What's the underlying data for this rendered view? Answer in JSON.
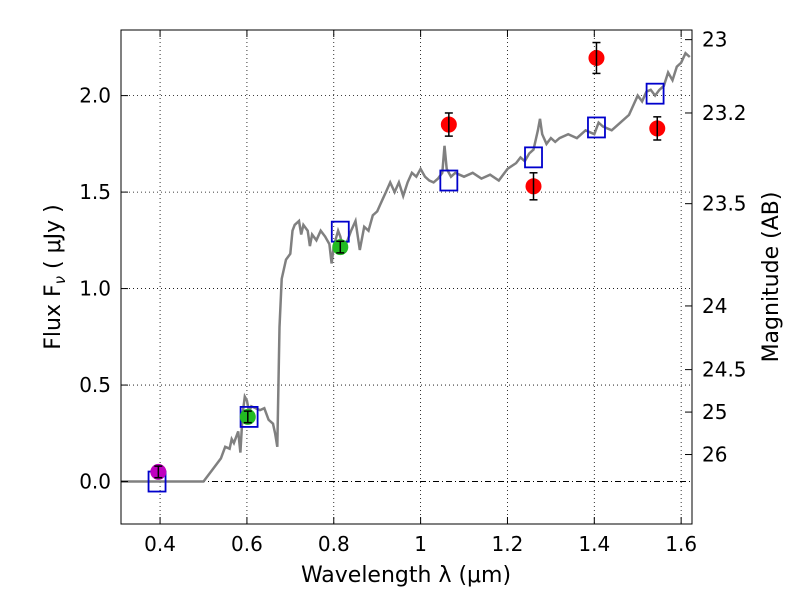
{
  "chart_data": {
    "type": "scatter",
    "xlabel": "Wavelength  λ (μm)",
    "ylabel": "Flux  F",
    "ylabel_sub": "ν",
    "ylabel_unit": "  ( μJy )",
    "ylabel_right": "Magnitude (AB)",
    "xlim": [
      0.31,
      1.625
    ],
    "ylim": [
      -0.22,
      2.34
    ],
    "x_ticks": [
      0.4,
      0.6,
      0.8,
      1.0,
      1.2,
      1.4,
      1.6
    ],
    "x_tick_labels": [
      "0.4",
      "0.6",
      "0.8",
      "1",
      "1.2",
      "1.4",
      "1.6"
    ],
    "y_ticks": [
      0.0,
      0.5,
      1.0,
      1.5,
      2.0
    ],
    "y_tick_labels": [
      "0.0",
      "0.5",
      "1.0",
      "1.5",
      "2.0"
    ],
    "right_ticks": [
      {
        "flux": 2.29,
        "label": "23"
      },
      {
        "flux": 1.91,
        "label": "23.2"
      },
      {
        "flux": 1.44,
        "label": "23.5"
      },
      {
        "flux": 0.91,
        "label": "24"
      },
      {
        "flux": 0.58,
        "label": "24.5"
      },
      {
        "flux": 0.36,
        "label": "25"
      },
      {
        "flux": 0.14,
        "label": "26"
      }
    ],
    "grid": true,
    "series": [
      {
        "name": "observed-purple",
        "color": "#bf00bf",
        "points": [
          {
            "x": 0.396,
            "y": 0.05,
            "err": 0.03
          }
        ]
      },
      {
        "name": "observed-green",
        "color": "#22bb22",
        "points": [
          {
            "x": 0.602,
            "y": 0.335,
            "err": 0.03
          },
          {
            "x": 0.815,
            "y": 1.215,
            "err": 0.03
          }
        ]
      },
      {
        "name": "observed-red",
        "color": "#ff0000",
        "points": [
          {
            "x": 1.065,
            "y": 1.85,
            "err": 0.06
          },
          {
            "x": 1.26,
            "y": 1.53,
            "err": 0.07
          },
          {
            "x": 1.405,
            "y": 2.195,
            "err": 0.08
          },
          {
            "x": 1.545,
            "y": 1.83,
            "err": 0.06
          }
        ]
      },
      {
        "name": "model-synthetic",
        "color": "#0000cc",
        "marker": "square",
        "points": [
          {
            "x": 0.393,
            "y": 0.0
          },
          {
            "x": 0.605,
            "y": 0.335
          },
          {
            "x": 0.815,
            "y": 1.295
          },
          {
            "x": 1.065,
            "y": 1.56
          },
          {
            "x": 1.26,
            "y": 1.68
          },
          {
            "x": 1.405,
            "y": 1.835
          },
          {
            "x": 1.54,
            "y": 2.01
          }
        ]
      },
      {
        "name": "model-spectrum",
        "color": "#808080",
        "type": "line",
        "points": [
          [
            0.31,
            0.0
          ],
          [
            0.5,
            0.0
          ],
          [
            0.52,
            0.06
          ],
          [
            0.54,
            0.12
          ],
          [
            0.55,
            0.18
          ],
          [
            0.56,
            0.17
          ],
          [
            0.565,
            0.22
          ],
          [
            0.57,
            0.2
          ],
          [
            0.58,
            0.26
          ],
          [
            0.585,
            0.15
          ],
          [
            0.59,
            0.35
          ],
          [
            0.595,
            0.44
          ],
          [
            0.6,
            0.42
          ],
          [
            0.605,
            0.36
          ],
          [
            0.61,
            0.39
          ],
          [
            0.62,
            0.38
          ],
          [
            0.63,
            0.37
          ],
          [
            0.64,
            0.38
          ],
          [
            0.65,
            0.32
          ],
          [
            0.66,
            0.3
          ],
          [
            0.665,
            0.25
          ],
          [
            0.67,
            0.18
          ],
          [
            0.675,
            0.8
          ],
          [
            0.68,
            1.05
          ],
          [
            0.69,
            1.15
          ],
          [
            0.7,
            1.18
          ],
          [
            0.705,
            1.3
          ],
          [
            0.71,
            1.33
          ],
          [
            0.72,
            1.35
          ],
          [
            0.725,
            1.28
          ],
          [
            0.73,
            1.33
          ],
          [
            0.74,
            1.3
          ],
          [
            0.745,
            1.22
          ],
          [
            0.75,
            1.28
          ],
          [
            0.76,
            1.25
          ],
          [
            0.77,
            1.3
          ],
          [
            0.78,
            1.27
          ],
          [
            0.79,
            1.23
          ],
          [
            0.795,
            1.13
          ],
          [
            0.8,
            1.22
          ],
          [
            0.81,
            1.3
          ],
          [
            0.815,
            1.27
          ],
          [
            0.82,
            1.22
          ],
          [
            0.83,
            1.24
          ],
          [
            0.84,
            1.3
          ],
          [
            0.85,
            1.35
          ],
          [
            0.86,
            1.2
          ],
          [
            0.87,
            1.32
          ],
          [
            0.88,
            1.3
          ],
          [
            0.89,
            1.38
          ],
          [
            0.9,
            1.4
          ],
          [
            0.91,
            1.45
          ],
          [
            0.92,
            1.5
          ],
          [
            0.93,
            1.55
          ],
          [
            0.94,
            1.5
          ],
          [
            0.95,
            1.55
          ],
          [
            0.96,
            1.48
          ],
          [
            0.97,
            1.55
          ],
          [
            0.98,
            1.6
          ],
          [
            0.99,
            1.58
          ],
          [
            1.0,
            1.62
          ],
          [
            1.01,
            1.58
          ],
          [
            1.02,
            1.56
          ],
          [
            1.03,
            1.55
          ],
          [
            1.04,
            1.57
          ],
          [
            1.05,
            1.6
          ],
          [
            1.055,
            1.74
          ],
          [
            1.06,
            1.62
          ],
          [
            1.07,
            1.58
          ],
          [
            1.08,
            1.6
          ],
          [
            1.1,
            1.58
          ],
          [
            1.12,
            1.6
          ],
          [
            1.14,
            1.57
          ],
          [
            1.16,
            1.59
          ],
          [
            1.18,
            1.56
          ],
          [
            1.2,
            1.62
          ],
          [
            1.22,
            1.65
          ],
          [
            1.23,
            1.68
          ],
          [
            1.24,
            1.66
          ],
          [
            1.25,
            1.7
          ],
          [
            1.26,
            1.72
          ],
          [
            1.27,
            1.82
          ],
          [
            1.275,
            1.88
          ],
          [
            1.28,
            1.8
          ],
          [
            1.29,
            1.75
          ],
          [
            1.3,
            1.78
          ],
          [
            1.31,
            1.76
          ],
          [
            1.32,
            1.78
          ],
          [
            1.34,
            1.8
          ],
          [
            1.36,
            1.78
          ],
          [
            1.38,
            1.82
          ],
          [
            1.4,
            1.8
          ],
          [
            1.41,
            1.86
          ],
          [
            1.42,
            1.84
          ],
          [
            1.44,
            1.82
          ],
          [
            1.46,
            1.86
          ],
          [
            1.48,
            1.9
          ],
          [
            1.5,
            2.0
          ],
          [
            1.51,
            1.97
          ],
          [
            1.52,
            2.02
          ],
          [
            1.53,
            2.03
          ],
          [
            1.54,
            2.0
          ],
          [
            1.55,
            2.03
          ],
          [
            1.56,
            2.05
          ],
          [
            1.57,
            2.12
          ],
          [
            1.58,
            2.08
          ],
          [
            1.59,
            2.15
          ],
          [
            1.6,
            2.17
          ],
          [
            1.61,
            2.22
          ],
          [
            1.62,
            2.2
          ]
        ]
      }
    ]
  }
}
